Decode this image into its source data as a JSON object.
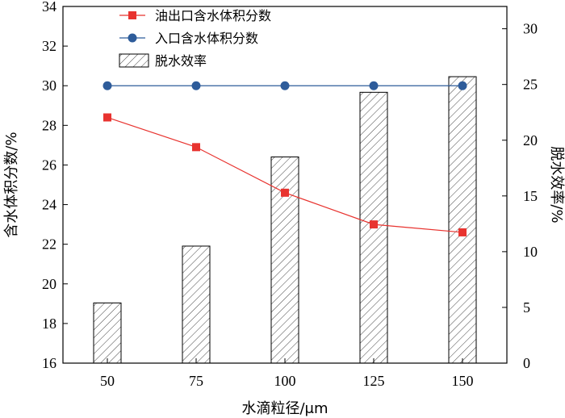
{
  "chart_data": {
    "type": "bar+line",
    "categories": [
      "50",
      "75",
      "100",
      "125",
      "150"
    ],
    "xlabel": "水滴粒径/μm",
    "ylabel_left": "含水体积分数/%",
    "ylabel_right": "脱水效率/%",
    "ylim_left": [
      16,
      34
    ],
    "yticks_left": [
      "16",
      "18",
      "20",
      "22",
      "24",
      "26",
      "28",
      "30",
      "32",
      "34"
    ],
    "ylim_right": [
      0,
      32
    ],
    "yticks_right": [
      "0",
      "5",
      "10",
      "15",
      "20",
      "25",
      "30"
    ],
    "grid": false,
    "legend_position": "top-left",
    "series": [
      {
        "name": "油出口含水体积分数",
        "kind": "line",
        "axis": "left",
        "color": "#e8332f",
        "marker": "square",
        "values": [
          28.4,
          26.9,
          24.6,
          23.0,
          22.6
        ]
      },
      {
        "name": "入口含水体积分数",
        "kind": "line",
        "axis": "left",
        "color": "#2e5c9a",
        "marker": "circle",
        "values": [
          30.0,
          30.0,
          30.0,
          30.0,
          30.0
        ]
      },
      {
        "name": "脱水效率",
        "kind": "bar",
        "axis": "right",
        "pattern": "hatch",
        "values": [
          5.4,
          10.5,
          18.5,
          24.3,
          25.7
        ]
      }
    ]
  }
}
